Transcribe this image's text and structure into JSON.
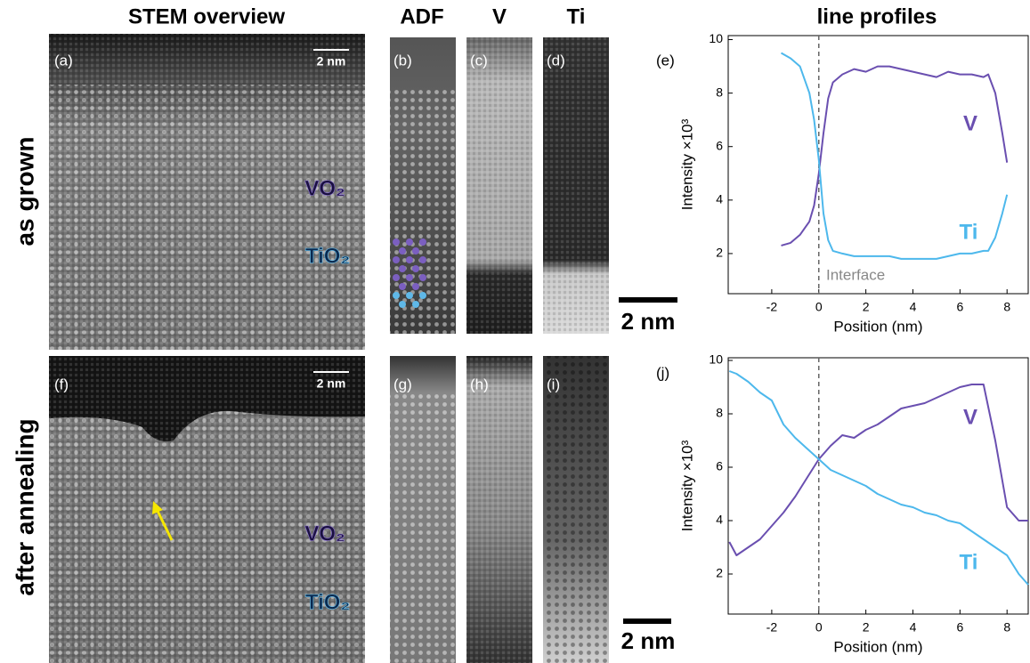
{
  "figure": {
    "column_titles": [
      "STEM overview",
      "ADF",
      "V",
      "Ti",
      "line profiles"
    ],
    "row_labels": [
      "as grown",
      "after annealing"
    ],
    "panel_labels": [
      "(a)",
      "(b)",
      "(c)",
      "(d)",
      "(e)",
      "(f)",
      "(g)",
      "(h)",
      "(i)",
      "(j)"
    ],
    "inset_scale": "2 nm",
    "map_scale": "2 nm",
    "materials": [
      "VO₂",
      "TiO₂"
    ]
  },
  "chart_data": [
    {
      "type": "line",
      "x_label": "Position (nm)",
      "y_label": "Intensity ×10³",
      "xlim": [
        -3.85,
        8.9
      ],
      "ylim": [
        0.5,
        10.15
      ],
      "xticks": [
        -2,
        0,
        2,
        4,
        6,
        8
      ],
      "yticks": [
        2,
        4,
        6,
        8,
        10
      ],
      "vline": 0,
      "annotation": "Interface",
      "x": [
        -1.6,
        -1.2,
        -0.8,
        -0.4,
        -0.2,
        0,
        0.2,
        0.4,
        0.6,
        1,
        1.5,
        2,
        2.5,
        3,
        3.5,
        4,
        4.5,
        5,
        5.5,
        6,
        6.5,
        7,
        7.2,
        7.5,
        7.8,
        8
      ],
      "series": [
        {
          "name": "V",
          "color": "#6a4fb0",
          "values": [
            2.3,
            2.4,
            2.7,
            3.2,
            3.8,
            5.0,
            6.5,
            7.8,
            8.4,
            8.7,
            8.9,
            8.8,
            9.0,
            9.0,
            8.9,
            8.8,
            8.7,
            8.6,
            8.8,
            8.7,
            8.7,
            8.6,
            8.7,
            8.0,
            6.5,
            5.4
          ]
        },
        {
          "name": "Ti",
          "color": "#4db8ec",
          "values": [
            9.5,
            9.3,
            9.0,
            8.0,
            7.0,
            5.5,
            3.5,
            2.5,
            2.1,
            2.0,
            1.9,
            1.9,
            1.9,
            1.9,
            1.8,
            1.8,
            1.8,
            1.8,
            1.9,
            2.0,
            2.0,
            2.1,
            2.1,
            2.6,
            3.5,
            4.2
          ]
        }
      ]
    },
    {
      "type": "line",
      "x_label": "Position (nm)",
      "y_label": "Intensity ×10³",
      "xlim": [
        -3.85,
        8.9
      ],
      "ylim": [
        0.5,
        10.1
      ],
      "xticks": [
        -2,
        0,
        2,
        4,
        6,
        8
      ],
      "yticks": [
        2,
        4,
        6,
        8,
        10
      ],
      "vline": 0,
      "x": [
        -3.8,
        -3.5,
        -3,
        -2.5,
        -2,
        -1.5,
        -1,
        -0.5,
        0,
        0.5,
        1,
        1.5,
        2,
        2.5,
        3,
        3.5,
        4,
        4.5,
        5,
        5.5,
        6,
        6.5,
        7,
        7.5,
        8,
        8.5,
        8.9
      ],
      "series": [
        {
          "name": "V",
          "color": "#6a4fb0",
          "values": [
            3.2,
            2.7,
            3.0,
            3.3,
            3.8,
            4.3,
            4.9,
            5.6,
            6.3,
            6.8,
            7.2,
            7.1,
            7.4,
            7.6,
            7.9,
            8.2,
            8.3,
            8.4,
            8.6,
            8.8,
            9.0,
            9.1,
            9.1,
            7.0,
            4.5,
            4.0,
            4.0
          ]
        },
        {
          "name": "Ti",
          "color": "#4db8ec",
          "values": [
            9.6,
            9.5,
            9.2,
            8.8,
            8.5,
            7.6,
            7.1,
            6.7,
            6.3,
            5.9,
            5.7,
            5.5,
            5.3,
            5.0,
            4.8,
            4.6,
            4.5,
            4.3,
            4.2,
            4.0,
            3.9,
            3.6,
            3.3,
            3.0,
            2.7,
            2.0,
            1.6
          ]
        }
      ]
    }
  ]
}
